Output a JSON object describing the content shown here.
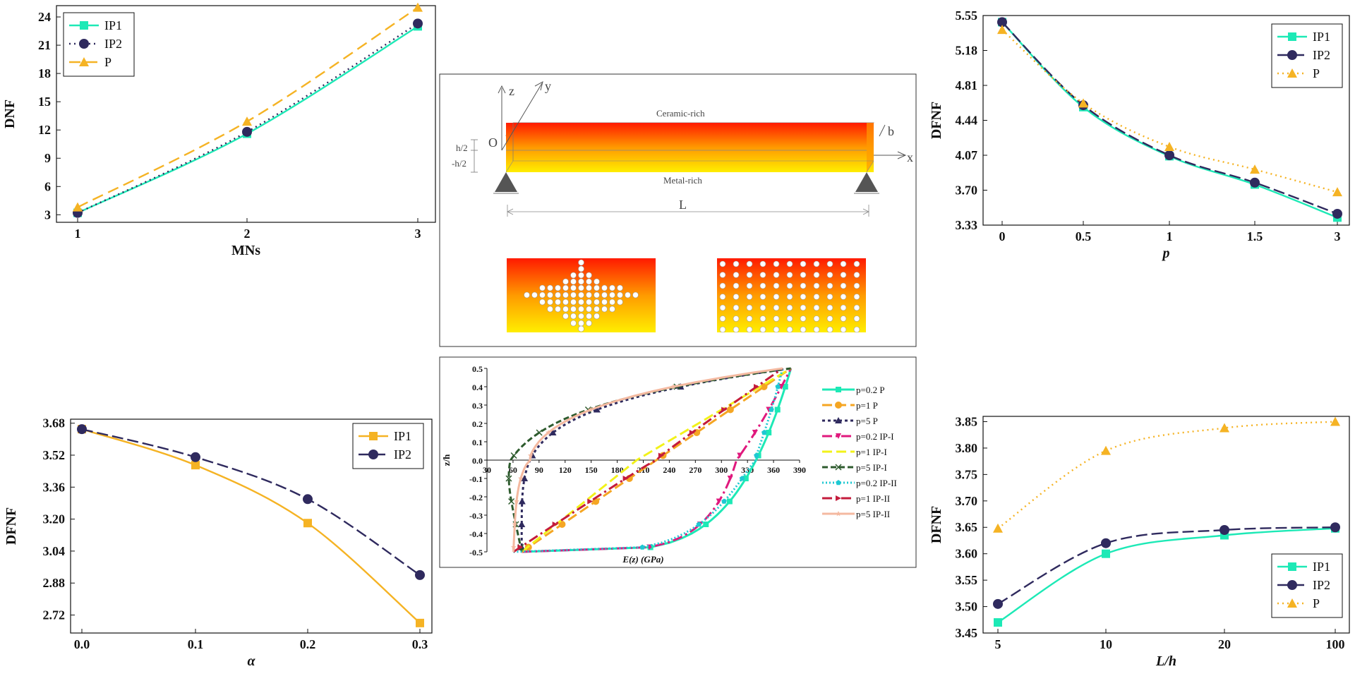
{
  "chart_data": [
    {
      "id": "dnf_mns",
      "type": "line",
      "xlabel": "MNs",
      "ylabel": "DNF",
      "categories": [
        "1",
        "2",
        "3"
      ],
      "ylim": [
        2.2,
        25.2
      ],
      "yticks": [
        3,
        6,
        9,
        12,
        15,
        18,
        21,
        24
      ],
      "legend": "top-left",
      "series": [
        {
          "name": "IP1",
          "values": [
            3.2,
            11.6,
            23.0
          ],
          "color": "#1de9b6",
          "dash": "",
          "marker": "square"
        },
        {
          "name": "IP2",
          "values": [
            3.2,
            11.8,
            23.3
          ],
          "color": "#2f2a5e",
          "dash": "2,5",
          "marker": "circle"
        },
        {
          "name": "P",
          "values": [
            3.8,
            12.9,
            25.0
          ],
          "color": "#f5b324",
          "dash": "16,8",
          "marker": "triangle"
        }
      ]
    },
    {
      "id": "dfnf_p",
      "type": "line",
      "xlabel": "p",
      "ylabel": "DFNF",
      "categories": [
        "0",
        "0.5",
        "1",
        "1.5",
        "3"
      ],
      "ylim": [
        3.33,
        5.55
      ],
      "yticks": [
        "3.33",
        "3.70",
        "4.07",
        "4.44",
        "4.81",
        "5.18",
        "5.55"
      ],
      "legend": "top-right",
      "series": [
        {
          "name": "IP1",
          "values": [
            5.48,
            4.58,
            4.06,
            3.76,
            3.41
          ],
          "color": "#1de9b6",
          "dash": "",
          "marker": "square"
        },
        {
          "name": "IP2",
          "values": [
            5.48,
            4.6,
            4.07,
            3.78,
            3.45
          ],
          "color": "#2f2a5e",
          "dash": "16,6",
          "marker": "circle"
        },
        {
          "name": "P",
          "values": [
            5.4,
            4.62,
            4.16,
            3.92,
            3.68
          ],
          "color": "#f5b324",
          "dash": "2,5",
          "marker": "triangle"
        }
      ]
    },
    {
      "id": "dfnf_alpha",
      "type": "line",
      "xlabel": "α",
      "ylabel": "DFNF",
      "categories": [
        "0.0",
        "0.1",
        "0.2",
        "0.3"
      ],
      "ylim": [
        2.63,
        3.7
      ],
      "yticks": [
        "2.72",
        "2.88",
        "3.04",
        "3.20",
        "3.36",
        "3.52",
        "3.68"
      ],
      "legend": "top-right",
      "series": [
        {
          "name": "IP1",
          "values": [
            3.65,
            3.47,
            3.18,
            2.68
          ],
          "color": "#f5b324",
          "dash": "",
          "marker": "square"
        },
        {
          "name": "IP2",
          "values": [
            3.65,
            3.51,
            3.3,
            2.92
          ],
          "color": "#2f2a5e",
          "dash": "16,6",
          "marker": "circle"
        }
      ]
    },
    {
      "id": "dfnf_lh",
      "type": "line",
      "xlabel": "L/h",
      "ylabel": "DFNF",
      "categories": [
        "5",
        "10",
        "20",
        "100"
      ],
      "ylim": [
        3.45,
        3.86
      ],
      "yticks": [
        "3.45",
        "3.50",
        "3.55",
        "3.60",
        "3.65",
        "3.70",
        "3.75",
        "3.80",
        "3.85"
      ],
      "legend": "bottom-right",
      "series": [
        {
          "name": "IP1",
          "values": [
            3.47,
            3.6,
            3.635,
            3.648
          ],
          "color": "#1de9b6",
          "dash": "",
          "marker": "square"
        },
        {
          "name": "IP2",
          "values": [
            3.505,
            3.62,
            3.645,
            3.65
          ],
          "color": "#2f2a5e",
          "dash": "16,6",
          "marker": "circle"
        },
        {
          "name": "P",
          "values": [
            3.648,
            3.795,
            3.838,
            3.85
          ],
          "color": "#f5b324",
          "dash": "2,5",
          "marker": "triangle"
        }
      ]
    },
    {
      "id": "ez_profile",
      "type": "line",
      "xlabel": "E(z) (GPa)",
      "ylabel": "z/h",
      "xlim": [
        30,
        390
      ],
      "ylim": [
        -0.5,
        0.5
      ],
      "xticks": [
        30,
        60,
        90,
        120,
        150,
        180,
        210,
        240,
        270,
        300,
        330,
        360,
        390
      ],
      "yticks": [
        "-0.5",
        "-0.4",
        "-0.3",
        "-0.2",
        "-0.1",
        "0.0",
        "0.1",
        "0.2",
        "0.3",
        "0.4",
        "0.5"
      ],
      "legend": "right",
      "series": [
        {
          "name": "p=0.2 P",
          "color": "#1de9b6",
          "dash": "",
          "marker": "square",
          "p": 0.2,
          "kind": "P"
        },
        {
          "name": "p=1 P",
          "color": "#f5a623",
          "dash": "14,6",
          "marker": "circle",
          "p": 1,
          "kind": "P"
        },
        {
          "name": "p=5 P",
          "color": "#2f2a5e",
          "dash": "4,4",
          "marker": "triangle",
          "p": 5,
          "kind": "P"
        },
        {
          "name": "p=0.2  IP-I",
          "color": "#e0197d",
          "dash": "14,5,3,5",
          "marker": "tri-down",
          "p": 0.2,
          "kind": "IP-I"
        },
        {
          "name": "p=1  IP-I",
          "color": "#f2f21a",
          "dash": "14,6",
          "marker": "none",
          "p": 1,
          "kind": "IP-I"
        },
        {
          "name": "p=5  IP-I",
          "color": "#2e5b2e",
          "dash": "8,4",
          "marker": "cross",
          "p": 5,
          "kind": "IP-I"
        },
        {
          "name": "p=0.2  IP-II",
          "color": "#1ec8d2",
          "dash": "2,3",
          "marker": "pentagon",
          "p": 0.2,
          "kind": "IP-II"
        },
        {
          "name": "p=1  IP-II",
          "color": "#c41c3c",
          "dash": "14,5,3,5",
          "marker": "tri-right",
          "p": 1,
          "kind": "IP-II"
        },
        {
          "name": "p=5  IP-II",
          "color": "#f4b9a0",
          "dash": "",
          "marker": "star",
          "p": 5,
          "kind": "IP-II"
        }
      ],
      "material": {
        "Ec": 380,
        "Em": 70
      }
    }
  ],
  "schematic": {
    "axis_z": "z",
    "axis_y": "y",
    "axis_x": "x",
    "origin": "O",
    "width_b": "b",
    "top_label": "Ceramic-rich",
    "bottom_label": "Metal-rich",
    "half_pos": "h/2",
    "half_neg": "-h/2",
    "length_label": "L"
  }
}
